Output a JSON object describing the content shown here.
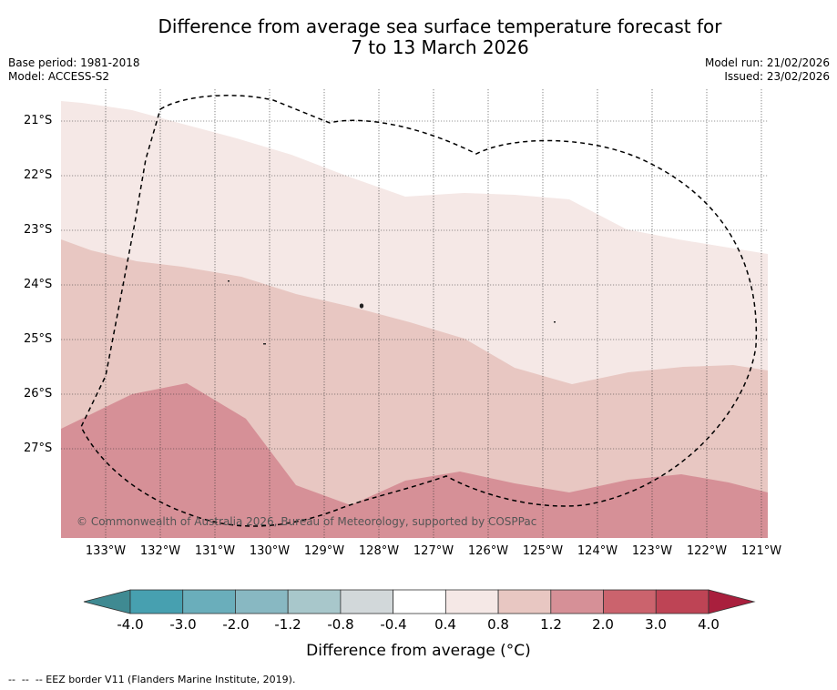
{
  "title": {
    "line1": "Difference from average sea surface temperature forecast for",
    "line2": "7 to 13 March 2026"
  },
  "meta": {
    "base_period": "Base period: 1981-2018",
    "model": "Model: ACCESS-S2",
    "model_run": "Model run: 21/02/2026",
    "issued": "Issued: 23/02/2026"
  },
  "map": {
    "lat_labels": [
      "21°S",
      "22°S",
      "23°S",
      "24°S",
      "25°S",
      "26°S",
      "27°S"
    ],
    "lon_labels": [
      "133°W",
      "132°W",
      "131°W",
      "130°W",
      "129°W",
      "128°W",
      "127°W",
      "126°W",
      "125°W",
      "124°W",
      "123°W",
      "122°W",
      "121°W"
    ],
    "copyright": "© Commonwealth of Australia 2026, Bureau of Meteorology, supported by COSPPac",
    "bands": [
      {
        "range": "0.4 to 0.8",
        "color": "#f5e8e6"
      },
      {
        "range": "0.8 to 1.2",
        "color": "#e8c7c2"
      },
      {
        "range": "1.2 to 2.0",
        "color": "#d69097"
      }
    ]
  },
  "colorbar": {
    "label": "Difference from average (°C)",
    "ticks": [
      "-4.0",
      "-3.0",
      "-2.0",
      "-1.2",
      "-0.8",
      "-0.4",
      "0.4",
      "0.8",
      "1.2",
      "2.0",
      "3.0",
      "4.0"
    ],
    "colors": [
      "#47a0b0",
      "#6aaebb",
      "#88b8c2",
      "#a8c7cb",
      "#d2d8da",
      "#ffffff",
      "#f5e8e6",
      "#e8c7c2",
      "#d69097",
      "#cb636d",
      "#be4455"
    ],
    "low_extension_color": "#3f8a92",
    "high_extension_color": "#a91f3d"
  },
  "footnote": "--  --  -- EEZ border V11 (Flanders Marine Institute, 2019)."
}
